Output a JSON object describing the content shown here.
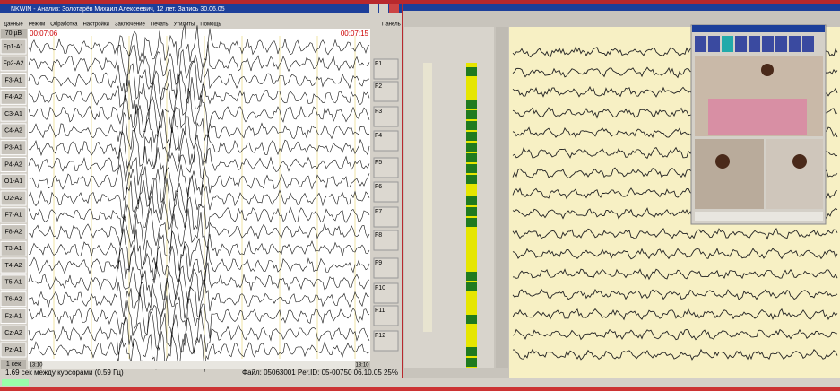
{
  "left_window": {
    "title": "NKWIN - Анализ: Золотарёв Михаил Алексеевич, 12 лет. Запись 30.06.05",
    "menu": [
      "Данные",
      "Режим",
      "Обработка",
      "Настройки",
      "Заключение",
      "Печать",
      "Утилиты",
      "Помощь"
    ],
    "panel": "Панель",
    "scale": "70 µВ",
    "time_start": "00:07:06",
    "time_end": "00:07:15",
    "channels": [
      "Fp1-A1",
      "Fp2-A2",
      "F3-A1",
      "F4-A2",
      "C3-A1",
      "C4-A2",
      "P3-A1",
      "P4-A2",
      "O1-A1",
      "O2-A2",
      "F7-A1",
      "F8-A2",
      "T3-A1",
      "T4-A2",
      "T5-A1",
      "T6-A2",
      "Fz-A1",
      "Cz-A2",
      "Pz-A1"
    ],
    "fkeys": [
      "F1",
      "F2",
      "F3",
      "F4",
      "F5",
      "F6",
      "F7",
      "F8",
      "F9",
      "F10",
      "F11",
      "F12"
    ],
    "speed": "1 сек",
    "pos_left": "13:10",
    "pos_right": "13:10",
    "status_left": "1.69 сек между курсорами (0.59 Гц)",
    "status_right": "Файл: 05063001  Per.ID: 05-00750  06.10.05  25%"
  }
}
